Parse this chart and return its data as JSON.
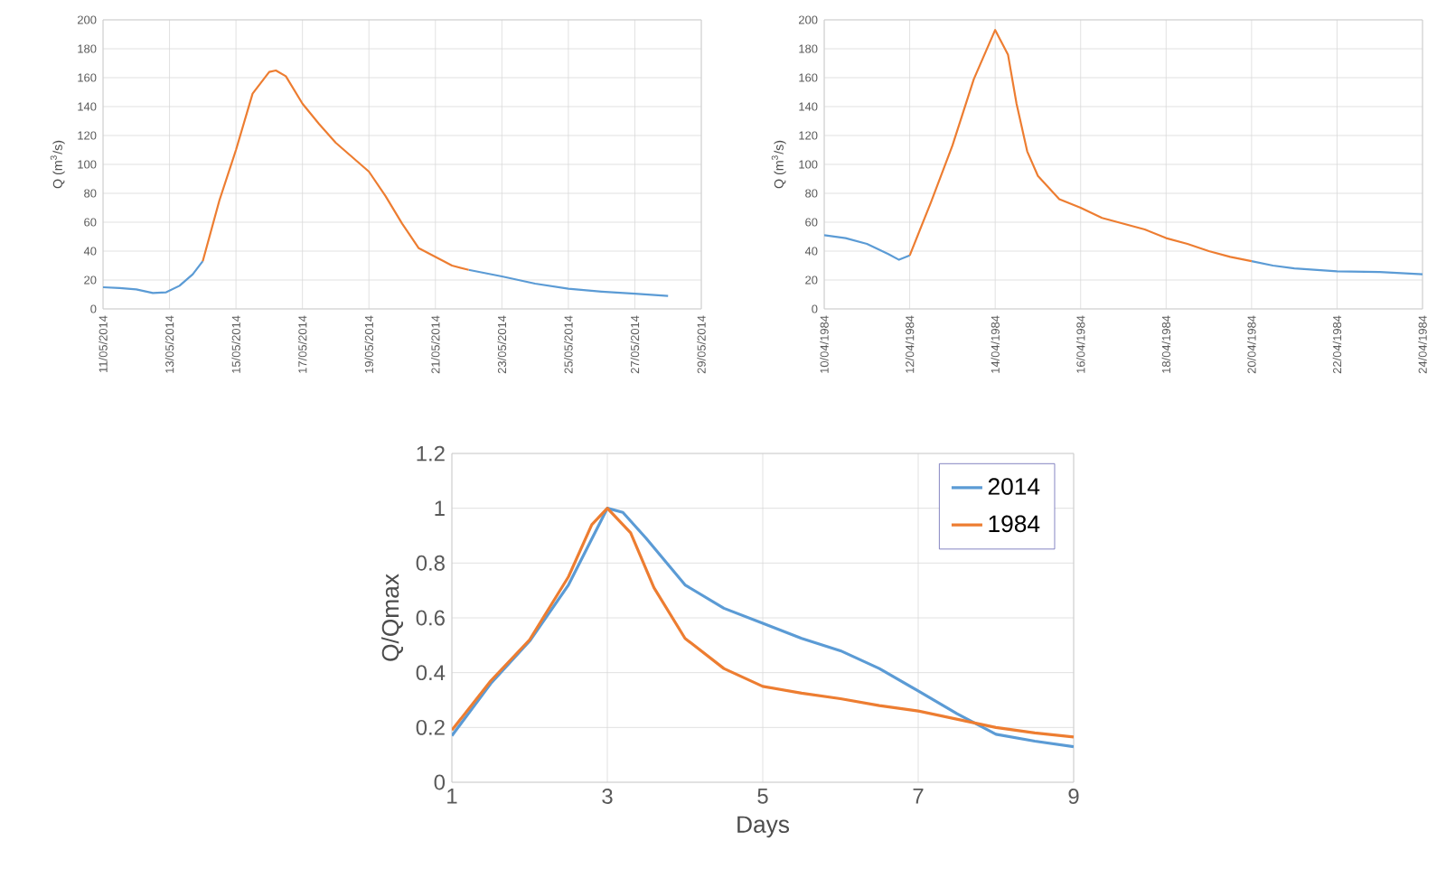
{
  "chart_data": [
    {
      "type": "line",
      "ylabel": "Q (m$^{3}$/s)",
      "xlim": [
        "2014-05-11",
        "2014-05-29"
      ],
      "xticks": [
        {
          "value": "2014-05-11",
          "label": "11/05/2014"
        },
        {
          "value": "2014-05-13",
          "label": "13/05/2014"
        },
        {
          "value": "2014-05-15",
          "label": "15/05/2014"
        },
        {
          "value": "2014-05-17",
          "label": "17/05/2014"
        },
        {
          "value": "2014-05-19",
          "label": "19/05/2014"
        },
        {
          "value": "2014-05-21",
          "label": "21/05/2014"
        },
        {
          "value": "2014-05-23",
          "label": "23/05/2014"
        },
        {
          "value": "2014-05-25",
          "label": "25/05/2014"
        },
        {
          "value": "2014-05-27",
          "label": "27/05/2014"
        },
        {
          "value": "2014-05-29",
          "label": "29/05/2014"
        }
      ],
      "ylim": [
        0,
        200
      ],
      "yticks": [
        0,
        20,
        40,
        60,
        80,
        100,
        120,
        140,
        160,
        180,
        200
      ],
      "grid": true,
      "series": [
        {
          "color": "#5b9bd5",
          "x": [
            "2014-05-11",
            "2014-05-11T12:00",
            "2014-05-12",
            "2014-05-12T12:00",
            "2014-05-12T21:36",
            "2014-05-13T07:12",
            "2014-05-13T16:48",
            "2014-05-14",
            "2014-05-18",
            "2014-05-22",
            "2014-05-23",
            "2014-05-24",
            "2014-05-25",
            "2014-05-26",
            "2014-05-27",
            "2014-05-28"
          ],
          "values": [
            15,
            14.5,
            13.5,
            11,
            11.5,
            16,
            24,
            33,
            null,
            27,
            22.5,
            17.5,
            14,
            12,
            10.5,
            9
          ]
        },
        {
          "color": "#ed7d31",
          "x": [
            "2014-05-14",
            "2014-05-14T12:00",
            "2014-05-15",
            "2014-05-15T12:00",
            "2014-05-16",
            "2014-05-16T04:48",
            "2014-05-16T12:00",
            "2014-05-17",
            "2014-05-17T12:00",
            "2014-05-18",
            "2014-05-18T12:00",
            "2014-05-19",
            "2014-05-19T12:00",
            "2014-05-20",
            "2014-05-20T12:00",
            "2014-05-21",
            "2014-05-21T12:00",
            "2014-05-22"
          ],
          "values": [
            33,
            75,
            110,
            149,
            164,
            165,
            161,
            142,
            128,
            115,
            105,
            95,
            78,
            59,
            42,
            36,
            30,
            27
          ]
        }
      ]
    },
    {
      "type": "line",
      "ylabel": "Q (m$^{3}$/s)",
      "xlim": [
        "1984-04-10",
        "1984-04-24"
      ],
      "xticks": [
        {
          "value": "1984-04-10",
          "label": "10/04/1984"
        },
        {
          "value": "1984-04-12",
          "label": "12/04/1984"
        },
        {
          "value": "1984-04-14",
          "label": "14/04/1984"
        },
        {
          "value": "1984-04-16",
          "label": "16/04/1984"
        },
        {
          "value": "1984-04-18",
          "label": "18/04/1984"
        },
        {
          "value": "1984-04-20",
          "label": "20/04/1984"
        },
        {
          "value": "1984-04-22",
          "label": "22/04/1984"
        },
        {
          "value": "1984-04-24",
          "label": "24/04/1984"
        }
      ],
      "ylim": [
        0,
        200
      ],
      "yticks": [
        0,
        20,
        40,
        60,
        80,
        100,
        120,
        140,
        160,
        180,
        200
      ],
      "grid": true,
      "series": [
        {
          "color": "#5b9bd5",
          "x": [
            "1984-04-10",
            "1984-04-10T12:00",
            "1984-04-11",
            "1984-04-11T12:00",
            "1984-04-11T18:00",
            "1984-04-12",
            "1984-04-16",
            "1984-04-20",
            "1984-04-20T12:00",
            "1984-04-21",
            "1984-04-22",
            "1984-04-23",
            "1984-04-24"
          ],
          "values": [
            51,
            49,
            45,
            38,
            34,
            37,
            null,
            33,
            30,
            28,
            26,
            25.5,
            24
          ]
        },
        {
          "color": "#ed7d31",
          "x": [
            "1984-04-12",
            "1984-04-12T12:00",
            "1984-04-13",
            "1984-04-13T12:00",
            "1984-04-14",
            "1984-04-14T07:12",
            "1984-04-14T12:00",
            "1984-04-14T18:00",
            "1984-04-15",
            "1984-04-15T12:00",
            "1984-04-16",
            "1984-04-16T12:00",
            "1984-04-17",
            "1984-04-17T12:00",
            "1984-04-18",
            "1984-04-18T12:00",
            "1984-04-19",
            "1984-04-19T12:00",
            "1984-04-20"
          ],
          "values": [
            37,
            74,
            113,
            159,
            193,
            176,
            142,
            109,
            92,
            76,
            70,
            63,
            59,
            55,
            49,
            45,
            40,
            36,
            33
          ]
        }
      ]
    },
    {
      "type": "line",
      "xlabel": "Days",
      "ylabel": "Q/Qmax",
      "xlim": [
        1,
        9
      ],
      "xticks": [
        1,
        3,
        5,
        7,
        9
      ],
      "ylim": [
        0,
        1.2
      ],
      "yticks": [
        0,
        0.2,
        0.4,
        0.6,
        0.8,
        1,
        1.2
      ],
      "grid": true,
      "legend": "top right",
      "series": [
        {
          "name": "2014",
          "color": "#5b9bd5",
          "x": [
            1,
            1.5,
            2,
            2.5,
            3,
            3.2,
            3.5,
            4,
            4.5,
            5,
            5.5,
            6,
            6.5,
            7,
            7.5,
            8,
            8.5,
            9
          ],
          "values": [
            0.17,
            0.36,
            0.515,
            0.72,
            1,
            0.985,
            0.89,
            0.72,
            0.635,
            0.58,
            0.525,
            0.48,
            0.415,
            0.333,
            0.25,
            0.175,
            0.15,
            0.13
          ]
        },
        {
          "name": "1984",
          "color": "#ed7d31",
          "x": [
            1,
            1.5,
            2,
            2.5,
            2.8,
            3,
            3.3,
            3.6,
            4,
            4.5,
            5,
            5.5,
            6,
            6.5,
            7,
            7.5,
            8,
            8.5,
            9
          ],
          "values": [
            0.19,
            0.37,
            0.52,
            0.75,
            0.94,
            1,
            0.91,
            0.71,
            0.525,
            0.415,
            0.35,
            0.325,
            0.305,
            0.28,
            0.26,
            0.23,
            0.2,
            0.18,
            0.165
          ]
        }
      ]
    }
  ]
}
